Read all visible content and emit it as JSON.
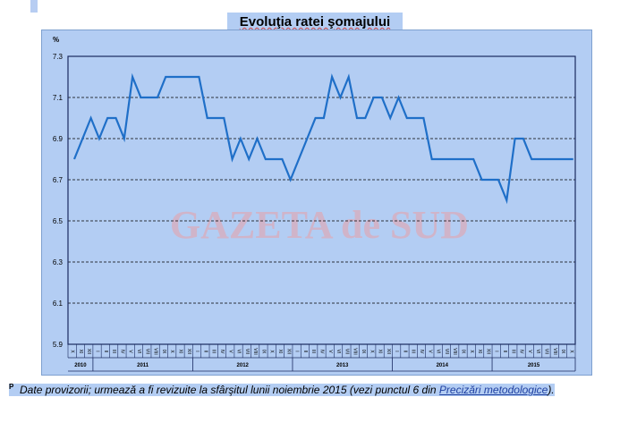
{
  "chart_data": {
    "type": "line",
    "title": "Evoluţia ratei şomajului",
    "ylabel": "%",
    "ylim": [
      5.9,
      7.3
    ],
    "yticks": [
      5.9,
      6.1,
      6.3,
      6.5,
      6.7,
      6.9,
      7.1,
      7.3
    ],
    "grid": true,
    "years": [
      {
        "label": "2010",
        "months": 3
      },
      {
        "label": "2011",
        "months": 12
      },
      {
        "label": "2012",
        "months": 12
      },
      {
        "label": "2013",
        "months": 12
      },
      {
        "label": "2014",
        "months": 12
      },
      {
        "label": "2015",
        "months": 10
      }
    ],
    "month_labels": [
      "X",
      "XI",
      "XII",
      "I",
      "II",
      "III",
      "IV",
      "V",
      "VI",
      "VII",
      "VIII",
      "IX",
      "X",
      "XI",
      "XII",
      "I",
      "II",
      "III",
      "IV",
      "V",
      "VI",
      "VII",
      "VIII",
      "IX",
      "X",
      "XI",
      "XII",
      "I",
      "II",
      "III",
      "IV",
      "V",
      "VI",
      "VII",
      "VIII",
      "IX",
      "X",
      "XI",
      "XII",
      "I",
      "II",
      "III",
      "IV",
      "V",
      "VI",
      "VII",
      "VIII",
      "IX",
      "X",
      "XI",
      "XII",
      "I",
      "II",
      "III",
      "IV",
      "V",
      "VI",
      "VII",
      "VIII",
      "IX",
      "X"
    ],
    "series": [
      {
        "color": "#1f6fc8",
        "values": [
          6.8,
          6.9,
          7.0,
          6.9,
          7.0,
          7.0,
          6.9,
          7.2,
          7.1,
          7.1,
          7.1,
          7.2,
          7.2,
          7.2,
          7.2,
          7.2,
          7.0,
          7.0,
          7.0,
          6.8,
          6.9,
          6.8,
          6.9,
          6.8,
          6.8,
          6.8,
          6.7,
          6.8,
          6.9,
          7.0,
          7.0,
          7.2,
          7.1,
          7.2,
          7.0,
          7.0,
          7.1,
          7.1,
          7.0,
          7.1,
          7.0,
          7.0,
          7.0,
          6.8,
          6.8,
          6.8,
          6.8,
          6.8,
          6.8,
          6.7,
          6.7,
          6.7,
          6.6,
          6.9,
          6.9,
          6.8,
          6.8,
          6.8,
          6.8,
          6.8,
          6.8
        ]
      }
    ]
  },
  "watermark": "GAZETA de SUD",
  "footnote": {
    "marker": "P",
    "text": "Date provizorii; urmează a fi revizuite la sfârşitul lunii noiembrie 2015 (vezi punctul 6 din",
    "link": "Precizări metodologice",
    "end": ")."
  },
  "colors": {
    "background": "#b3cdf3",
    "line": "#1f6fc8",
    "axis": "#1a2a60",
    "watermark": "#e8a0a8"
  }
}
